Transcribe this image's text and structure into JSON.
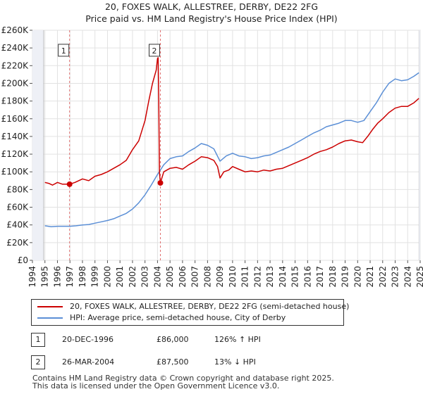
{
  "chart_data": {
    "type": "line",
    "title": "20, FOXES WALK, ALLESTREE, DERBY, DE22 2FG",
    "subtitle": "Price paid vs. HM Land Registry's House Price Index (HPI)",
    "xlim": [
      1994,
      2025
    ],
    "ylim": [
      0,
      260000
    ],
    "x_ticks": [
      1994,
      1995,
      1996,
      1997,
      1998,
      1999,
      2000,
      2001,
      2002,
      2003,
      2004,
      2005,
      2006,
      2007,
      2008,
      2009,
      2010,
      2011,
      2012,
      2013,
      2014,
      2015,
      2016,
      2017,
      2018,
      2019,
      2020,
      2021,
      2022,
      2023,
      2024,
      2025
    ],
    "y_ticks": [
      0,
      20000,
      40000,
      60000,
      80000,
      100000,
      120000,
      140000,
      160000,
      180000,
      200000,
      220000,
      240000,
      260000
    ],
    "y_tick_labels": [
      "£0",
      "£20K",
      "£40K",
      "£60K",
      "£80K",
      "£100K",
      "£120K",
      "£140K",
      "£160K",
      "£180K",
      "£200K",
      "£220K",
      "£240K",
      "£260K"
    ],
    "grid": true,
    "series": [
      {
        "name": "20, FOXES WALK, ALLESTREE, DERBY, DE22 2FG (semi-detached house)",
        "color": "#cc0000",
        "points": [
          [
            1995.0,
            88000
          ],
          [
            1995.3,
            87000
          ],
          [
            1995.6,
            85000
          ],
          [
            1996.0,
            88000
          ],
          [
            1996.4,
            86000
          ],
          [
            1996.97,
            86000
          ],
          [
            1997.4,
            88000
          ],
          [
            1998.0,
            92000
          ],
          [
            1998.5,
            90000
          ],
          [
            1999.0,
            95000
          ],
          [
            1999.5,
            97000
          ],
          [
            2000.0,
            100000
          ],
          [
            2000.5,
            104000
          ],
          [
            2001.0,
            108000
          ],
          [
            2001.5,
            113000
          ],
          [
            2002.0,
            125000
          ],
          [
            2002.5,
            135000
          ],
          [
            2003.0,
            158000
          ],
          [
            2003.3,
            180000
          ],
          [
            2003.6,
            200000
          ],
          [
            2003.9,
            215000
          ],
          [
            2004.0,
            228000
          ],
          [
            2004.05,
            229000
          ],
          [
            2004.1,
            180000
          ],
          [
            2004.15,
            100000
          ],
          [
            2004.23,
            87500
          ],
          [
            2004.5,
            100000
          ],
          [
            2005.0,
            104000
          ],
          [
            2005.5,
            105000
          ],
          [
            2006.0,
            103000
          ],
          [
            2006.5,
            108000
          ],
          [
            2007.0,
            112000
          ],
          [
            2007.5,
            117000
          ],
          [
            2008.0,
            116000
          ],
          [
            2008.5,
            113000
          ],
          [
            2008.8,
            106000
          ],
          [
            2009.0,
            93000
          ],
          [
            2009.3,
            100000
          ],
          [
            2009.7,
            102000
          ],
          [
            2010.0,
            106000
          ],
          [
            2010.5,
            103000
          ],
          [
            2011.0,
            100000
          ],
          [
            2011.5,
            101000
          ],
          [
            2012.0,
            100000
          ],
          [
            2012.5,
            102000
          ],
          [
            2013.0,
            101000
          ],
          [
            2013.5,
            103000
          ],
          [
            2014.0,
            104000
          ],
          [
            2014.5,
            107000
          ],
          [
            2015.0,
            110000
          ],
          [
            2015.5,
            113000
          ],
          [
            2016.0,
            116000
          ],
          [
            2016.5,
            120000
          ],
          [
            2017.0,
            123000
          ],
          [
            2017.5,
            125000
          ],
          [
            2018.0,
            128000
          ],
          [
            2018.5,
            132000
          ],
          [
            2019.0,
            135000
          ],
          [
            2019.5,
            136000
          ],
          [
            2020.0,
            134000
          ],
          [
            2020.4,
            133000
          ],
          [
            2020.8,
            140000
          ],
          [
            2021.2,
            148000
          ],
          [
            2021.6,
            155000
          ],
          [
            2022.0,
            160000
          ],
          [
            2022.5,
            167000
          ],
          [
            2023.0,
            172000
          ],
          [
            2023.5,
            174000
          ],
          [
            2024.0,
            174000
          ],
          [
            2024.5,
            178000
          ],
          [
            2024.9,
            183000
          ]
        ]
      },
      {
        "name": "HPI: Average price, semi-detached house, City of Derby",
        "color": "#5b8fd6",
        "points": [
          [
            1995.0,
            39000
          ],
          [
            1995.5,
            38000
          ],
          [
            1996.0,
            38500
          ],
          [
            1996.5,
            38500
          ],
          [
            1997.0,
            38500
          ],
          [
            1997.5,
            39000
          ],
          [
            1998.0,
            40000
          ],
          [
            1998.5,
            40500
          ],
          [
            1999.0,
            42000
          ],
          [
            1999.5,
            43500
          ],
          [
            2000.0,
            45000
          ],
          [
            2000.5,
            47000
          ],
          [
            2001.0,
            50000
          ],
          [
            2001.5,
            53000
          ],
          [
            2002.0,
            58000
          ],
          [
            2002.5,
            65000
          ],
          [
            2003.0,
            74000
          ],
          [
            2003.5,
            85000
          ],
          [
            2004.0,
            97000
          ],
          [
            2004.5,
            108000
          ],
          [
            2005.0,
            115000
          ],
          [
            2005.5,
            117000
          ],
          [
            2006.0,
            118000
          ],
          [
            2006.5,
            123000
          ],
          [
            2007.0,
            127000
          ],
          [
            2007.5,
            132000
          ],
          [
            2008.0,
            130000
          ],
          [
            2008.5,
            126000
          ],
          [
            2009.0,
            112000
          ],
          [
            2009.5,
            118000
          ],
          [
            2010.0,
            121000
          ],
          [
            2010.5,
            118000
          ],
          [
            2011.0,
            117000
          ],
          [
            2011.5,
            115000
          ],
          [
            2012.0,
            116000
          ],
          [
            2012.5,
            118000
          ],
          [
            2013.0,
            119000
          ],
          [
            2013.5,
            122000
          ],
          [
            2014.0,
            125000
          ],
          [
            2014.5,
            128000
          ],
          [
            2015.0,
            132000
          ],
          [
            2015.5,
            136000
          ],
          [
            2016.0,
            140000
          ],
          [
            2016.5,
            144000
          ],
          [
            2017.0,
            147000
          ],
          [
            2017.5,
            151000
          ],
          [
            2018.0,
            153000
          ],
          [
            2018.5,
            155000
          ],
          [
            2019.0,
            158000
          ],
          [
            2019.5,
            158000
          ],
          [
            2020.0,
            156000
          ],
          [
            2020.5,
            158000
          ],
          [
            2021.0,
            168000
          ],
          [
            2021.5,
            178000
          ],
          [
            2022.0,
            190000
          ],
          [
            2022.5,
            200000
          ],
          [
            2023.0,
            205000
          ],
          [
            2023.5,
            203000
          ],
          [
            2024.0,
            204000
          ],
          [
            2024.5,
            208000
          ],
          [
            2024.9,
            212000
          ]
        ]
      }
    ],
    "annotations": [
      {
        "label": "1",
        "x": 1996.97,
        "y": 86000,
        "label_y": 237000
      },
      {
        "label": "2",
        "x": 2004.23,
        "y": 87500,
        "label_y": 237000
      }
    ]
  },
  "legend": {
    "items": [
      {
        "label": "20, FOXES WALK, ALLESTREE, DERBY, DE22 2FG (semi-detached house)",
        "color": "#cc0000"
      },
      {
        "label": "HPI: Average price, semi-detached house, City of Derby",
        "color": "#5b8fd6"
      }
    ]
  },
  "sales": [
    {
      "id": "1",
      "date": "20-DEC-1996",
      "price": "£86,000",
      "hpi": "126% ↑ HPI"
    },
    {
      "id": "2",
      "date": "26-MAR-2004",
      "price": "£87,500",
      "hpi": "13% ↓ HPI"
    }
  ],
  "footer": {
    "line1": "Contains HM Land Registry data © Crown copyright and database right 2025.",
    "line2": "This data is licensed under the Open Government Licence v3.0."
  }
}
